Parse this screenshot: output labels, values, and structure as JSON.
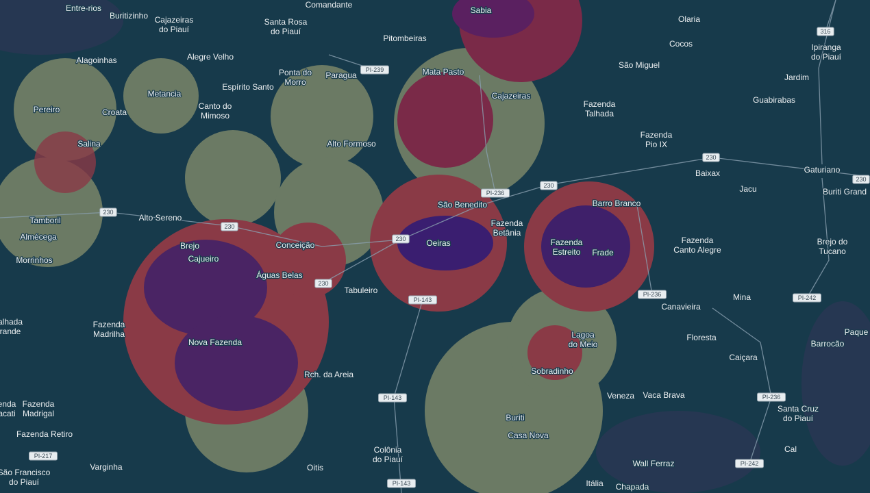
{
  "places": [
    [
      "Entre-rios"
    ],
    [
      "Buritizinho"
    ],
    [
      "Cajazeiras",
      "do Piauí"
    ],
    [
      "Comandante"
    ],
    [
      "Santa Rosa",
      "do Piauí"
    ],
    [
      "Sabia"
    ],
    [
      "Olaria"
    ],
    [
      "Pitombeiras"
    ],
    [
      "Cocos"
    ],
    [
      "Ipiranga",
      "do Piauí"
    ],
    [
      "Alagoinhas"
    ],
    [
      "Alegre Velho"
    ],
    [
      "Ponta do",
      "Morro"
    ],
    [
      "Paragua"
    ],
    [
      "Mata Pasto"
    ],
    [
      "São Miguel"
    ],
    [
      "Jardim"
    ],
    [
      "Metancia"
    ],
    [
      "Espírito Santo"
    ],
    [
      "Cajazeiras"
    ],
    [
      "Guabirabas"
    ],
    [
      "Pereiro"
    ],
    [
      "Croata"
    ],
    [
      "Canto do",
      "Mimoso"
    ],
    [
      "Fazenda",
      "Talhada"
    ],
    [
      "Salina"
    ],
    [
      "Alto Formoso"
    ],
    [
      "Fazenda",
      "Pio IX"
    ],
    [
      "Baixax"
    ],
    [
      "Gaturiano"
    ],
    [
      "Jacu"
    ],
    [
      "Buriti Grand"
    ],
    [
      "Tamboril"
    ],
    [
      "Alto Sereno"
    ],
    [
      "Barro Branco"
    ],
    [
      "São Benedito"
    ],
    [
      "Almécega"
    ],
    [
      "Fazenda",
      "Betânia"
    ],
    [
      "Fazenda",
      "Estreito"
    ],
    [
      "Fazenda",
      "Canto Alegre"
    ],
    [
      "Brejo"
    ],
    [
      "Conceição"
    ],
    [
      "Oeiras"
    ],
    [
      "Frade"
    ],
    [
      "Brejo do",
      "Tucano"
    ],
    [
      "Morrinhos"
    ],
    [
      "Cajueiro"
    ],
    [
      "Águas Belas"
    ],
    [
      "Tabuleiro"
    ],
    [
      "Mina"
    ],
    [
      "Canavieira"
    ],
    [
      "alhada",
      "rande"
    ],
    [
      "Fazenda",
      "Madrilha"
    ],
    [
      "Paque"
    ],
    [
      "Lagoa",
      "do Meio"
    ],
    [
      "Floresta"
    ],
    [
      "Nova Fazenda"
    ],
    [
      "Barrocão"
    ],
    [
      "Caiçara"
    ],
    [
      "Sobradinho"
    ],
    [
      "Rch. da Areia"
    ],
    [
      "Veneza"
    ],
    [
      "Vaca Brava"
    ],
    [
      "enda",
      "acati"
    ],
    [
      "Fazenda",
      "Madrigal"
    ],
    [
      "Santa Cruz",
      "do Piauí"
    ],
    [
      "Buriti"
    ],
    [
      "Fazenda Retiro"
    ],
    [
      "Casa Nova"
    ],
    [
      "Colônia",
      "do Piauí"
    ],
    [
      "Cal"
    ],
    [
      "Varginha"
    ],
    [
      "Oitis"
    ],
    [
      "São Francisco",
      "do Piauí"
    ],
    [
      "Wall Ferraz"
    ],
    [
      "Itália"
    ],
    [
      "Chapada"
    ]
  ],
  "roads": [
    "PI-239",
    "316",
    "230",
    "230",
    "PI-236",
    "230",
    "230",
    "230",
    "230",
    "230",
    "PI-143",
    "PI-236",
    "PI-242",
    "PI-143",
    "PI-236",
    "PI-217",
    "PI-242",
    "PI-143"
  ]
}
